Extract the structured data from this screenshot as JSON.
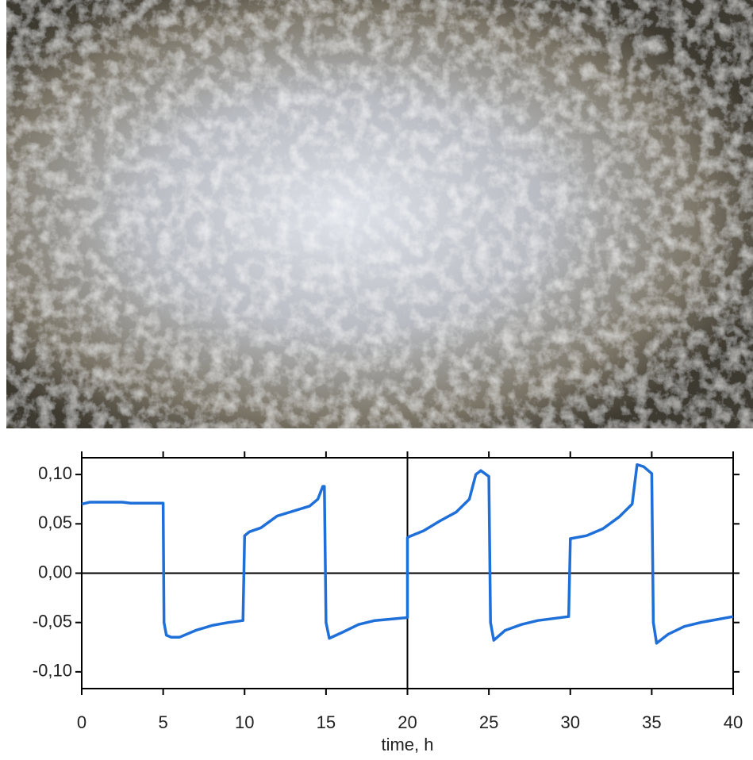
{
  "chart_data": {
    "type": "line",
    "xlabel": "time, h",
    "x": [
      0,
      0.5,
      2.5,
      3,
      5,
      5.05,
      5.2,
      5.5,
      6,
      7,
      8,
      9,
      9.9,
      10,
      10.3,
      11,
      12,
      13,
      14,
      14.5,
      14.8,
      14.9,
      15,
      15.2,
      16,
      17,
      18,
      20,
      20,
      20.1,
      21,
      22,
      23,
      23.8,
      24.2,
      24.5,
      25,
      25.1,
      25.3,
      26,
      27,
      28,
      29.9,
      30,
      31,
      32,
      33,
      33.8,
      34.1,
      34.5,
      35,
      35.1,
      35.3,
      36,
      37,
      38,
      40
    ],
    "series": [
      {
        "color": "#1f6fd9",
        "values": [
          0.07,
          0.072,
          0.072,
          0.071,
          0.071,
          -0.05,
          -0.063,
          -0.065,
          -0.065,
          -0.058,
          -0.053,
          -0.05,
          -0.048,
          0.038,
          0.042,
          0.046,
          0.058,
          0.063,
          0.068,
          0.075,
          0.088,
          0.088,
          -0.05,
          -0.066,
          -0.06,
          -0.052,
          -0.048,
          -0.045,
          0.036,
          0.037,
          0.043,
          0.053,
          0.062,
          0.075,
          0.1,
          0.104,
          0.098,
          -0.05,
          -0.068,
          -0.058,
          -0.052,
          -0.048,
          -0.044,
          0.035,
          0.038,
          0.045,
          0.057,
          0.07,
          0.11,
          0.108,
          0.101,
          -0.05,
          -0.071,
          -0.062,
          -0.054,
          -0.05,
          -0.044
        ]
      }
    ],
    "xlim": [
      0,
      40
    ],
    "ylim": [
      -0.117,
      0.117
    ],
    "xticks": [
      0,
      5,
      10,
      15,
      20,
      25,
      30,
      35,
      40
    ],
    "yticks": [
      {
        "value": -0.1,
        "label": "-0,10"
      },
      {
        "value": -0.05,
        "label": "-0,05"
      },
      {
        "value": 0,
        "label": "0,00"
      },
      {
        "value": 0.05,
        "label": "0,05"
      },
      {
        "value": 0.1,
        "label": "0,10"
      }
    ],
    "hlines": [
      0
    ],
    "vlines": [
      20
    ]
  }
}
